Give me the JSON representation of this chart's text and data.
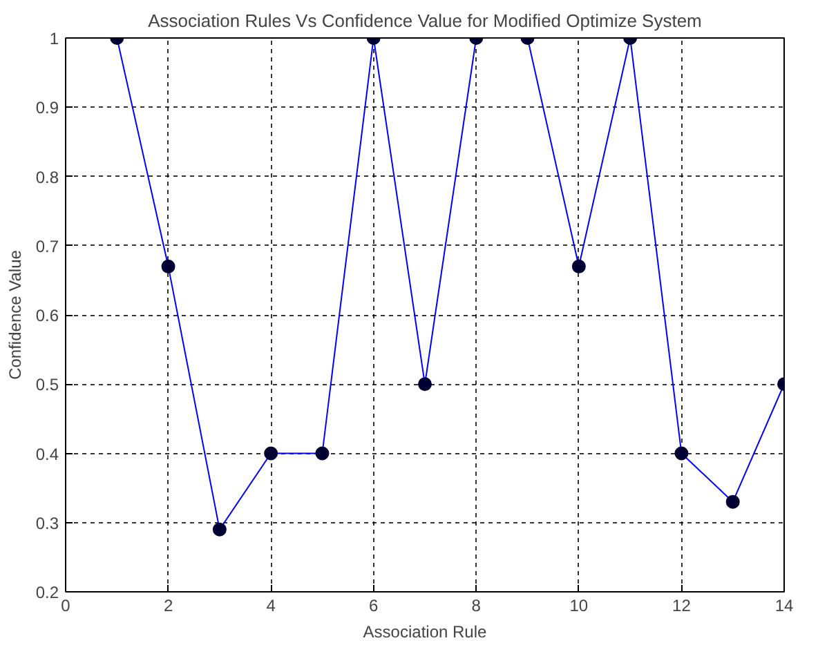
{
  "chart_data": {
    "type": "line",
    "title": "Association Rules Vs Confidence Value for Modified Optimize System",
    "xlabel": "Association Rule",
    "ylabel": "Confidence Value",
    "x": [
      1,
      2,
      3,
      4,
      5,
      6,
      7,
      8,
      9,
      10,
      11,
      12,
      13,
      14
    ],
    "series": [
      {
        "color": "#0000ff",
        "values": [
          1,
          0.67,
          0.29,
          0.4,
          0.4,
          1,
          0.5,
          1,
          1,
          0.67,
          1,
          0.4,
          0.33,
          0.5
        ]
      }
    ],
    "xlim": [
      0,
      14
    ],
    "xticks": [
      0,
      2,
      4,
      6,
      8,
      10,
      12,
      14
    ],
    "ylim": [
      0.2,
      1
    ],
    "yticks": [
      0.2,
      0.3,
      0.4,
      0.5,
      0.6,
      0.7,
      0.8,
      0.9,
      1
    ],
    "grid": true,
    "marker": "circle",
    "line_style": "solid"
  }
}
